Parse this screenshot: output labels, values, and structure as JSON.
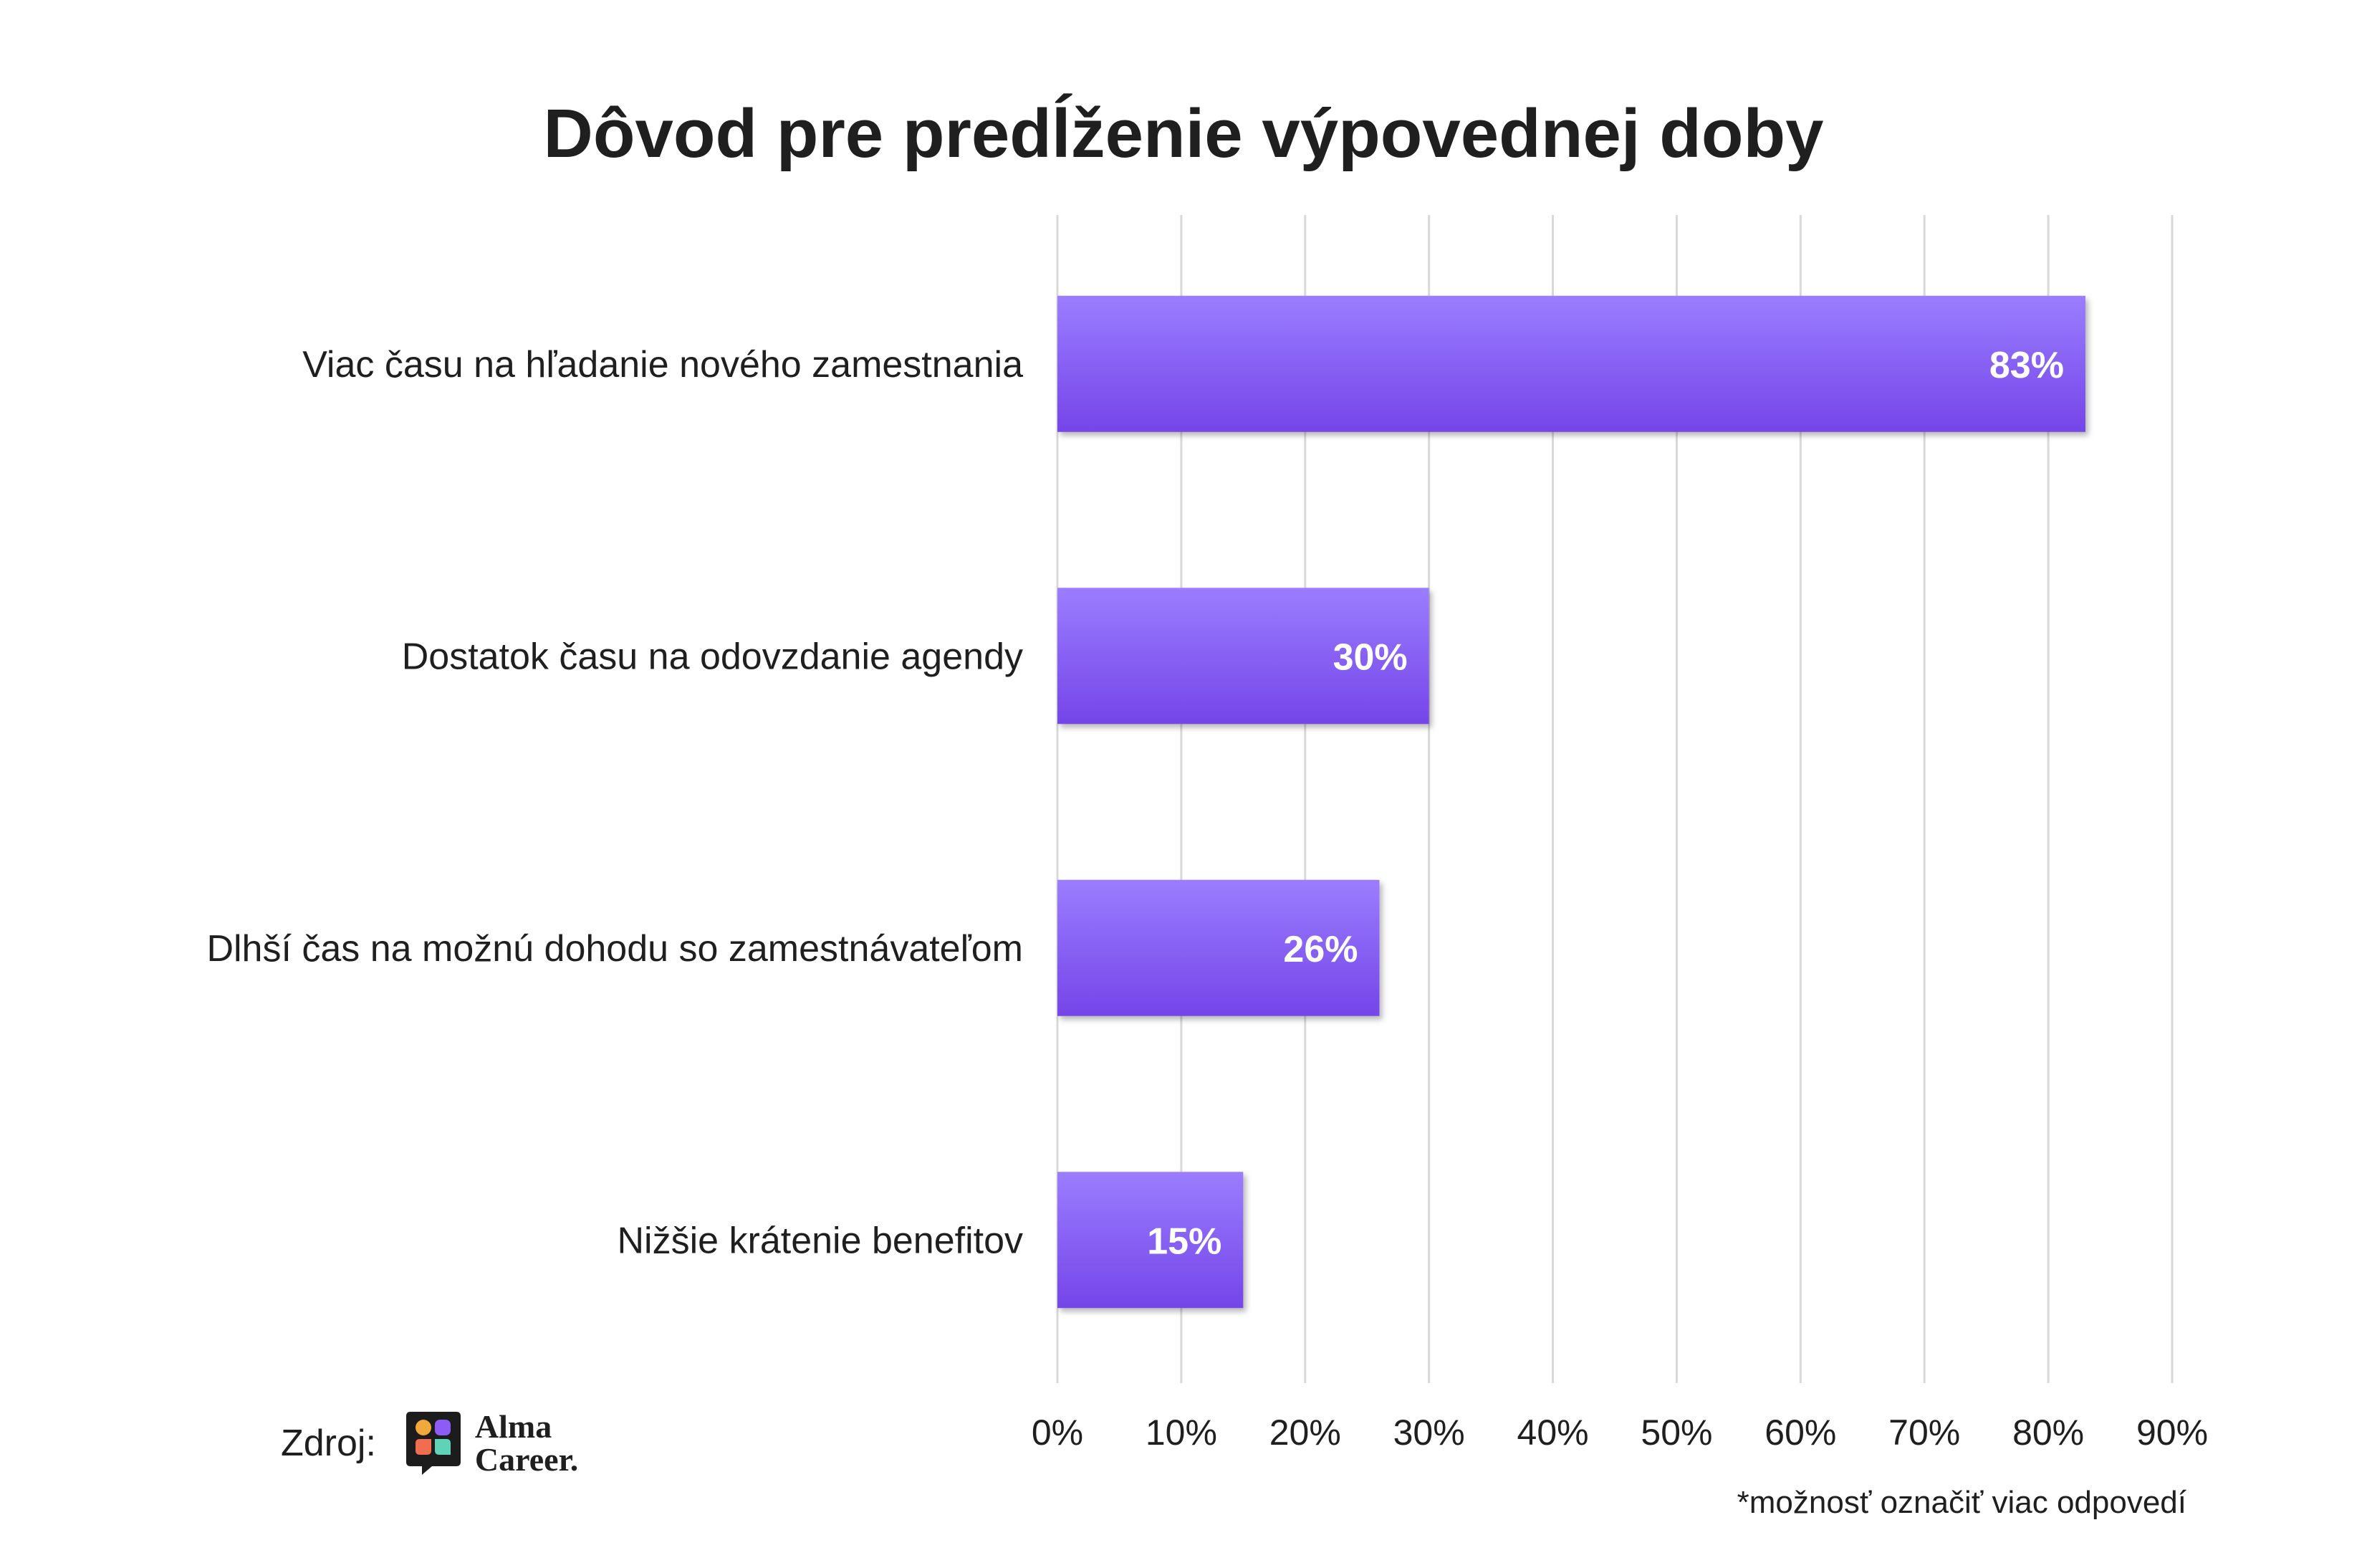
{
  "chart_data": {
    "type": "bar",
    "orientation": "horizontal",
    "title": "Dôvod pre predĺženie výpovednej doby",
    "categories": [
      "Viac času na hľadanie nového zamestnania",
      "Dostatok času na odovzdanie agendy",
      "Dlhší čas na možnú dohodu so zamestnávateľom",
      "Nižšie krátenie benefitov"
    ],
    "values": [
      83,
      30,
      26,
      15
    ],
    "data_labels": [
      "83%",
      "30%",
      "26%",
      "15%"
    ],
    "xlim": [
      0,
      90
    ],
    "x_ticks": [
      0,
      10,
      20,
      30,
      40,
      50,
      60,
      70,
      80,
      90
    ],
    "x_tick_labels": [
      "0%",
      "10%",
      "20%",
      "30%",
      "40%",
      "50%",
      "60%",
      "70%",
      "80%",
      "90%"
    ],
    "xlabel": "",
    "ylabel": "",
    "grid": true,
    "colors": {
      "bar_top": "#9b7dff",
      "bar_bottom": "#7445e8",
      "grid": "#d9d9d9",
      "text": "#1f1f1f",
      "label_text": "#ffffff"
    }
  },
  "source": {
    "label": "Zdroj:",
    "brand_line1": "Alma",
    "brand_line2": "Career."
  },
  "footnote": "*možnosť označiť viac odpovedí"
}
